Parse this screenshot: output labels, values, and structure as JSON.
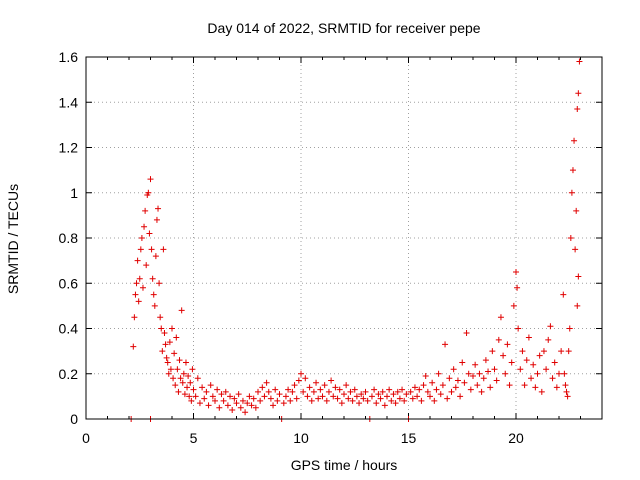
{
  "chart_data": {
    "type": "scatter",
    "title": "Day 014 of 2022, SRMTID for receiver pepe",
    "xlabel": "GPS time / hours",
    "ylabel": "SRMTID / TECUs",
    "xlim": [
      0,
      24
    ],
    "ylim": [
      0,
      1.6
    ],
    "x_ticks": [
      0,
      5,
      10,
      15,
      20
    ],
    "x_tick_labels": [
      "0",
      "5",
      "10",
      "15",
      "20"
    ],
    "y_ticks": [
      0,
      0.2,
      0.4,
      0.6,
      0.8,
      1.0,
      1.2,
      1.4,
      1.6
    ],
    "y_tick_labels": [
      "0",
      "0.2",
      "0.4",
      "0.6",
      "0.8",
      "1",
      "1.2",
      "1.4",
      "1.6"
    ],
    "grid": true,
    "marker": "plus",
    "color": "#e00000",
    "series": [
      {
        "name": "SRMTID",
        "points": [
          [
            2.1,
            0.0
          ],
          [
            3.0,
            0.0
          ],
          [
            9.1,
            0.0
          ],
          [
            13.2,
            0.0
          ],
          [
            15.0,
            0.0
          ],
          [
            2.2,
            0.32
          ],
          [
            2.25,
            0.45
          ],
          [
            2.3,
            0.55
          ],
          [
            2.35,
            0.6
          ],
          [
            2.4,
            0.7
          ],
          [
            2.45,
            0.52
          ],
          [
            2.5,
            0.62
          ],
          [
            2.55,
            0.75
          ],
          [
            2.6,
            0.8
          ],
          [
            2.65,
            0.58
          ],
          [
            2.7,
            0.85
          ],
          [
            2.75,
            0.92
          ],
          [
            2.8,
            0.68
          ],
          [
            2.85,
            0.99
          ],
          [
            2.9,
            1.0
          ],
          [
            2.95,
            0.82
          ],
          [
            3.0,
            1.06
          ],
          [
            3.05,
            0.75
          ],
          [
            3.1,
            0.62
          ],
          [
            3.15,
            0.55
          ],
          [
            3.2,
            0.5
          ],
          [
            3.25,
            0.72
          ],
          [
            3.3,
            0.88
          ],
          [
            3.35,
            0.93
          ],
          [
            3.4,
            0.6
          ],
          [
            3.45,
            0.45
          ],
          [
            3.5,
            0.4
          ],
          [
            3.55,
            0.3
          ],
          [
            3.6,
            0.75
          ],
          [
            3.65,
            0.38
          ],
          [
            3.7,
            0.33
          ],
          [
            3.75,
            0.27
          ],
          [
            3.8,
            0.25
          ],
          [
            3.85,
            0.2
          ],
          [
            3.9,
            0.34
          ],
          [
            3.95,
            0.22
          ],
          [
            4.0,
            0.4
          ],
          [
            4.05,
            0.18
          ],
          [
            4.1,
            0.29
          ],
          [
            4.15,
            0.15
          ],
          [
            4.2,
            0.36
          ],
          [
            4.25,
            0.22
          ],
          [
            4.3,
            0.12
          ],
          [
            4.35,
            0.26
          ],
          [
            4.4,
            0.18
          ],
          [
            4.45,
            0.48
          ],
          [
            4.5,
            0.16
          ],
          [
            4.55,
            0.2
          ],
          [
            4.6,
            0.11
          ],
          [
            4.65,
            0.25
          ],
          [
            4.7,
            0.14
          ],
          [
            4.75,
            0.19
          ],
          [
            4.8,
            0.1
          ],
          [
            4.85,
            0.16
          ],
          [
            4.9,
            0.08
          ],
          [
            4.95,
            0.22
          ],
          [
            5.0,
            0.13
          ],
          [
            5.1,
            0.1
          ],
          [
            5.2,
            0.18
          ],
          [
            5.3,
            0.07
          ],
          [
            5.4,
            0.14
          ],
          [
            5.5,
            0.09
          ],
          [
            5.6,
            0.12
          ],
          [
            5.7,
            0.06
          ],
          [
            5.8,
            0.15
          ],
          [
            5.9,
            0.1
          ],
          [
            6.0,
            0.08
          ],
          [
            6.1,
            0.13
          ],
          [
            6.2,
            0.05
          ],
          [
            6.3,
            0.11
          ],
          [
            6.4,
            0.08
          ],
          [
            6.5,
            0.12
          ],
          [
            6.6,
            0.06
          ],
          [
            6.7,
            0.1
          ],
          [
            6.8,
            0.04
          ],
          [
            6.9,
            0.09
          ],
          [
            7.0,
            0.07
          ],
          [
            7.1,
            0.11
          ],
          [
            7.2,
            0.05
          ],
          [
            7.3,
            0.08
          ],
          [
            7.4,
            0.03
          ],
          [
            7.5,
            0.07
          ],
          [
            7.6,
            0.1
          ],
          [
            7.7,
            0.06
          ],
          [
            7.8,
            0.09
          ],
          [
            7.9,
            0.05
          ],
          [
            8.0,
            0.12
          ],
          [
            8.1,
            0.08
          ],
          [
            8.2,
            0.14
          ],
          [
            8.3,
            0.1
          ],
          [
            8.4,
            0.16
          ],
          [
            8.5,
            0.12
          ],
          [
            8.6,
            0.09
          ],
          [
            8.7,
            0.06
          ],
          [
            8.8,
            0.13
          ],
          [
            8.9,
            0.08
          ],
          [
            9.0,
            0.11
          ],
          [
            9.2,
            0.07
          ],
          [
            9.3,
            0.1
          ],
          [
            9.4,
            0.13
          ],
          [
            9.5,
            0.08
          ],
          [
            9.6,
            0.12
          ],
          [
            9.7,
            0.15
          ],
          [
            9.8,
            0.09
          ],
          [
            9.9,
            0.17
          ],
          [
            10.0,
            0.2
          ],
          [
            10.1,
            0.12
          ],
          [
            10.2,
            0.18
          ],
          [
            10.3,
            0.1
          ],
          [
            10.4,
            0.14
          ],
          [
            10.5,
            0.08
          ],
          [
            10.6,
            0.12
          ],
          [
            10.7,
            0.16
          ],
          [
            10.8,
            0.09
          ],
          [
            10.9,
            0.13
          ],
          [
            11.0,
            0.1
          ],
          [
            11.1,
            0.15
          ],
          [
            11.2,
            0.08
          ],
          [
            11.3,
            0.12
          ],
          [
            11.4,
            0.17
          ],
          [
            11.5,
            0.1
          ],
          [
            11.6,
            0.14
          ],
          [
            11.7,
            0.09
          ],
          [
            11.8,
            0.13
          ],
          [
            11.9,
            0.07
          ],
          [
            12.0,
            0.11
          ],
          [
            12.1,
            0.15
          ],
          [
            12.2,
            0.09
          ],
          [
            12.3,
            0.12
          ],
          [
            12.4,
            0.08
          ],
          [
            12.5,
            0.13
          ],
          [
            12.6,
            0.1
          ],
          [
            12.7,
            0.07
          ],
          [
            12.8,
            0.11
          ],
          [
            12.9,
            0.09
          ],
          [
            13.0,
            0.12
          ],
          [
            13.1,
            0.08
          ],
          [
            13.3,
            0.1
          ],
          [
            13.4,
            0.13
          ],
          [
            13.5,
            0.07
          ],
          [
            13.6,
            0.11
          ],
          [
            13.7,
            0.09
          ],
          [
            13.8,
            0.12
          ],
          [
            13.9,
            0.06
          ],
          [
            14.0,
            0.1
          ],
          [
            14.1,
            0.13
          ],
          [
            14.2,
            0.08
          ],
          [
            14.3,
            0.11
          ],
          [
            14.4,
            0.07
          ],
          [
            14.5,
            0.12
          ],
          [
            14.6,
            0.09
          ],
          [
            14.7,
            0.13
          ],
          [
            14.8,
            0.08
          ],
          [
            14.9,
            0.11
          ],
          [
            15.1,
            0.12
          ],
          [
            15.2,
            0.09
          ],
          [
            15.3,
            0.14
          ],
          [
            15.4,
            0.1
          ],
          [
            15.5,
            0.13
          ],
          [
            15.6,
            0.08
          ],
          [
            15.7,
            0.15
          ],
          [
            15.8,
            0.19
          ],
          [
            15.9,
            0.12
          ],
          [
            16.0,
            0.1
          ],
          [
            16.1,
            0.16
          ],
          [
            16.2,
            0.08
          ],
          [
            16.3,
            0.13
          ],
          [
            16.4,
            0.2
          ],
          [
            16.5,
            0.11
          ],
          [
            16.6,
            0.15
          ],
          [
            16.7,
            0.33
          ],
          [
            16.8,
            0.09
          ],
          [
            16.9,
            0.18
          ],
          [
            17.0,
            0.12
          ],
          [
            17.1,
            0.22
          ],
          [
            17.2,
            0.14
          ],
          [
            17.3,
            0.17
          ],
          [
            17.4,
            0.1
          ],
          [
            17.5,
            0.25
          ],
          [
            17.6,
            0.16
          ],
          [
            17.7,
            0.38
          ],
          [
            17.8,
            0.2
          ],
          [
            17.9,
            0.13
          ],
          [
            18.0,
            0.19
          ],
          [
            18.1,
            0.24
          ],
          [
            18.2,
            0.15
          ],
          [
            18.3,
            0.2
          ],
          [
            18.4,
            0.12
          ],
          [
            18.5,
            0.18
          ],
          [
            18.6,
            0.26
          ],
          [
            18.7,
            0.21
          ],
          [
            18.8,
            0.14
          ],
          [
            18.9,
            0.3
          ],
          [
            19.0,
            0.22
          ],
          [
            19.1,
            0.17
          ],
          [
            19.2,
            0.35
          ],
          [
            19.3,
            0.45
          ],
          [
            19.4,
            0.28
          ],
          [
            19.5,
            0.2
          ],
          [
            19.6,
            0.33
          ],
          [
            19.7,
            0.15
          ],
          [
            19.8,
            0.25
          ],
          [
            19.9,
            0.5
          ],
          [
            20.0,
            0.65
          ],
          [
            20.05,
            0.58
          ],
          [
            20.1,
            0.4
          ],
          [
            20.2,
            0.22
          ],
          [
            20.3,
            0.3
          ],
          [
            20.4,
            0.15
          ],
          [
            20.5,
            0.26
          ],
          [
            20.6,
            0.36
          ],
          [
            20.7,
            0.18
          ],
          [
            20.8,
            0.24
          ],
          [
            20.9,
            0.14
          ],
          [
            21.0,
            0.2
          ],
          [
            21.1,
            0.28
          ],
          [
            21.2,
            0.12
          ],
          [
            21.3,
            0.3
          ],
          [
            21.4,
            0.22
          ],
          [
            21.5,
            0.35
          ],
          [
            21.6,
            0.41
          ],
          [
            21.7,
            0.18
          ],
          [
            21.8,
            0.25
          ],
          [
            21.9,
            0.14
          ],
          [
            22.0,
            0.2
          ],
          [
            22.1,
            0.3
          ],
          [
            22.2,
            0.55
          ],
          [
            22.25,
            0.2
          ],
          [
            22.3,
            0.15
          ],
          [
            22.35,
            0.12
          ],
          [
            22.4,
            0.1
          ],
          [
            22.45,
            0.3
          ],
          [
            22.5,
            0.4
          ],
          [
            22.55,
            0.8
          ],
          [
            22.6,
            1.0
          ],
          [
            22.65,
            1.1
          ],
          [
            22.7,
            1.23
          ],
          [
            22.75,
            0.75
          ],
          [
            22.8,
            0.92
          ],
          [
            22.85,
            1.37
          ],
          [
            22.9,
            1.44
          ],
          [
            22.95,
            1.58
          ],
          [
            22.9,
            0.63
          ],
          [
            22.85,
            0.5
          ]
        ]
      }
    ]
  }
}
